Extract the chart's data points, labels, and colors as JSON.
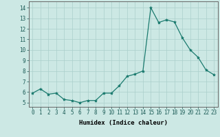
{
  "x": [
    0,
    1,
    2,
    3,
    4,
    5,
    6,
    7,
    8,
    9,
    10,
    11,
    12,
    13,
    14,
    15,
    16,
    17,
    18,
    19,
    20,
    21,
    22,
    23
  ],
  "y": [
    5.9,
    6.3,
    5.8,
    5.9,
    5.3,
    5.2,
    5.0,
    5.2,
    5.2,
    5.9,
    5.9,
    6.6,
    7.5,
    7.7,
    8.0,
    14.0,
    12.6,
    12.85,
    12.65,
    11.15,
    10.0,
    9.3,
    8.1,
    7.65
  ],
  "line_color": "#1a7a6e",
  "marker": "*",
  "marker_size": 3.0,
  "bg_color": "#cce8e4",
  "grid_color": "#aacfcb",
  "xlabel": "Humidex (Indice chaleur)",
  "ylabel_ticks": [
    5,
    6,
    7,
    8,
    9,
    10,
    11,
    12,
    13,
    14
  ],
  "xlim": [
    -0.5,
    23.5
  ],
  "ylim": [
    4.6,
    14.6
  ],
  "xticks": [
    0,
    1,
    2,
    3,
    4,
    5,
    6,
    7,
    8,
    9,
    10,
    11,
    12,
    13,
    14,
    15,
    16,
    17,
    18,
    19,
    20,
    21,
    22,
    23
  ],
  "xlabel_fontsize": 6.5,
  "tick_fontsize": 5.5,
  "linewidth": 0.9
}
